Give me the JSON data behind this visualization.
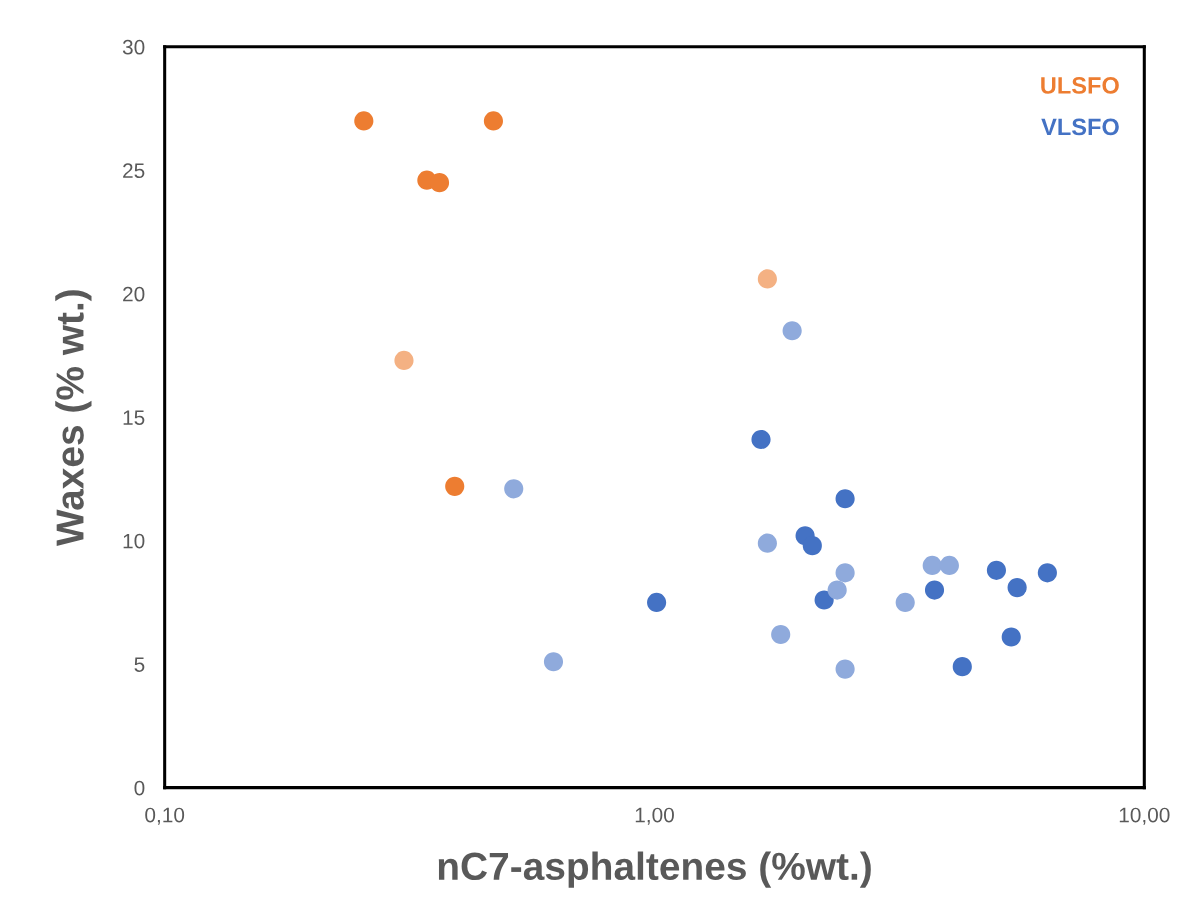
{
  "chart_data": {
    "type": "scatter",
    "xlabel": "nC7-asphaltenes (%wt.)",
    "ylabel": "Waxes (% wt.)",
    "log": "x",
    "xlim": [
      0.1,
      10
    ],
    "xticks": [
      {
        "value": 0.1,
        "label": "0,10"
      },
      {
        "value": 1,
        "label": "1,00"
      },
      {
        "value": 10,
        "label": "10,00"
      }
    ],
    "ylim": [
      0,
      30
    ],
    "yticks": [
      0,
      5,
      10,
      15,
      20,
      25,
      30
    ],
    "grid": false,
    "marker": "circle",
    "legend": "top right",
    "series": [
      {
        "name": "ULSFO",
        "color": "#ed7d31",
        "x": [
          0.255,
          0.469,
          0.343,
          0.364,
          0.391
        ],
        "values": [
          27.0,
          27.0,
          24.6,
          24.5,
          12.2
        ]
      },
      {
        "color": "#f4b183",
        "x": [
          0.308,
          1.7
        ],
        "values": [
          17.3,
          20.6
        ]
      },
      {
        "name": "VLSFO",
        "color": "#4472c4",
        "x": [
          1.65,
          2.45,
          2.03,
          2.1,
          1.01,
          2.22,
          3.73,
          4.99,
          5.5,
          6.34,
          5.35,
          4.25
        ],
        "values": [
          14.1,
          11.7,
          10.2,
          9.8,
          7.5,
          7.6,
          8.0,
          8.8,
          8.1,
          8.7,
          6.1,
          4.9
        ]
      },
      {
        "color": "#8faadc",
        "x": [
          0.516,
          0.622,
          1.91,
          1.7,
          1.81,
          2.36,
          2.45,
          2.45,
          3.25,
          3.69,
          4.0
        ],
        "values": [
          12.1,
          5.1,
          18.5,
          9.9,
          6.2,
          8.0,
          8.7,
          4.8,
          7.5,
          9.0,
          9.0
        ]
      }
    ]
  }
}
